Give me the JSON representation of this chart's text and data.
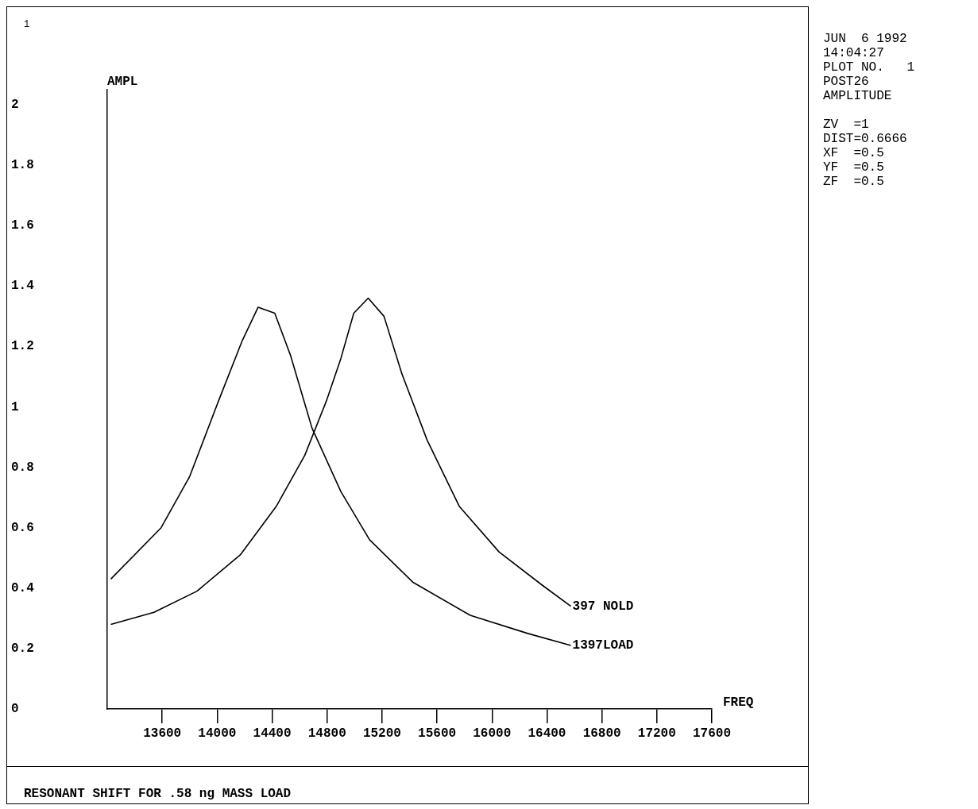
{
  "chart_data": {
    "type": "line",
    "title": "RESONANT SHIFT FOR .58 ng MASS LOAD",
    "xlabel": "FREQ",
    "ylabel": "AMPL",
    "xlim": [
      13200,
      17600
    ],
    "xticks": [
      13600,
      14000,
      14400,
      14800,
      15200,
      15600,
      16000,
      16400,
      16800,
      17200,
      17600
    ],
    "ylim": [
      0,
      2.05
    ],
    "yticks": [
      0,
      0.2,
      0.4,
      0.6,
      0.8,
      1,
      1.2,
      1.4,
      1.6,
      1.8,
      2
    ],
    "legend": false,
    "marker": "none",
    "line_style": "solid",
    "series": [
      {
        "name": "397 NOLD",
        "color": "#000000",
        "x": [
          13226,
          13540,
          13853,
          14168,
          14429,
          14638,
          14795,
          14900,
          14994,
          15099,
          15214,
          15344,
          15528,
          15763,
          16051,
          16365,
          16574
        ],
        "values": [
          0.28,
          0.32,
          0.39,
          0.51,
          0.67,
          0.84,
          1.02,
          1.16,
          1.31,
          1.36,
          1.3,
          1.11,
          0.89,
          0.67,
          0.52,
          0.41,
          0.34
        ]
      },
      {
        "name": "1397LOAD",
        "color": "#000000",
        "x": [
          13226,
          13592,
          13800,
          14010,
          14183,
          14298,
          14419,
          14534,
          14690,
          14900,
          15109,
          15423,
          15841,
          16260,
          16574
        ],
        "values": [
          0.43,
          0.6,
          0.77,
          1.02,
          1.22,
          1.33,
          1.31,
          1.17,
          0.93,
          0.72,
          0.56,
          0.42,
          0.31,
          0.25,
          0.21
        ]
      }
    ],
    "annotations": [
      "1",
      "JUN  6 1992",
      "14:04:27",
      "PLOT NO.   1",
      "POST26",
      "AMPLITUDE",
      "ZV  =1",
      "DIST=0.6666",
      "XF  =0.5",
      "YF  =0.5",
      "ZF  =0.5"
    ]
  }
}
